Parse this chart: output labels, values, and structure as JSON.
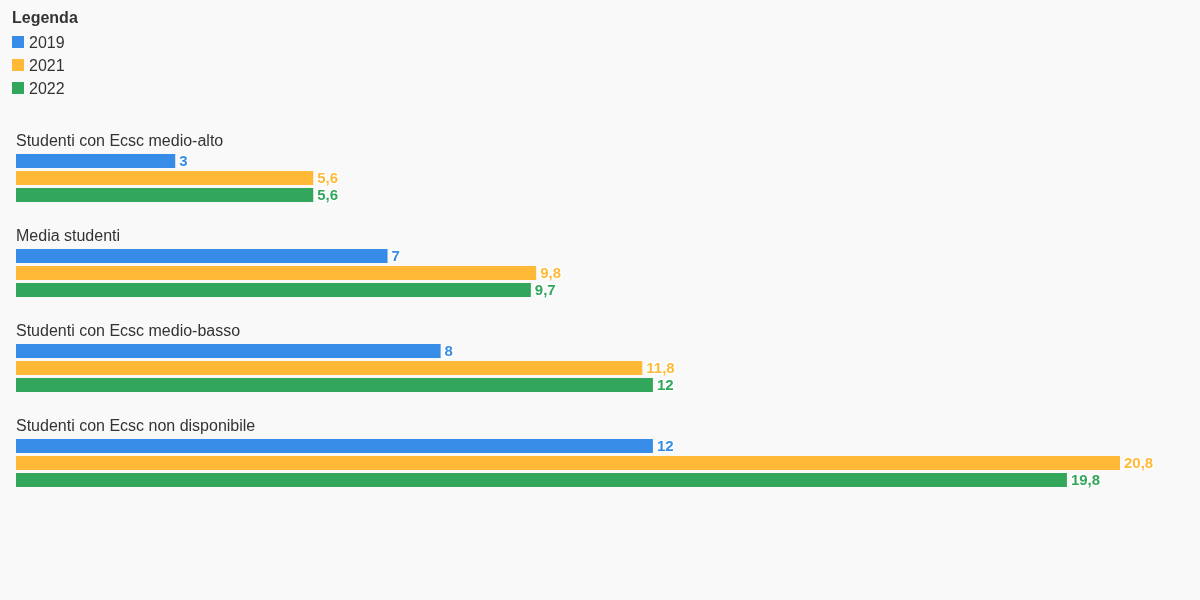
{
  "chart_data": {
    "type": "bar",
    "orientation": "horizontal",
    "legend_title": "Legenda",
    "legend": "top left",
    "tick_labels": "y",
    "categories": [
      "Studenti con Ecsc medio-alto",
      "Media studenti",
      "Studenti con Ecsc medio-basso",
      "Studenti con Ecsc non disponibile"
    ],
    "series": [
      {
        "name": "2019",
        "color": "#368ce7",
        "values": [
          3,
          7,
          8,
          12
        ],
        "value_labels": [
          "3",
          "7",
          "8",
          "12"
        ]
      },
      {
        "name": "2021",
        "color": "#ffb937",
        "values": [
          5.6,
          9.8,
          11.8,
          20.8
        ],
        "value_labels": [
          "5,6",
          "9,8",
          "11,8",
          "20,8"
        ]
      },
      {
        "name": "2022",
        "color": "#32a65a",
        "values": [
          5.6,
          9.7,
          12,
          19.8
        ],
        "value_labels": [
          "5,6",
          "9,7",
          "12",
          "19,8"
        ]
      }
    ]
  }
}
